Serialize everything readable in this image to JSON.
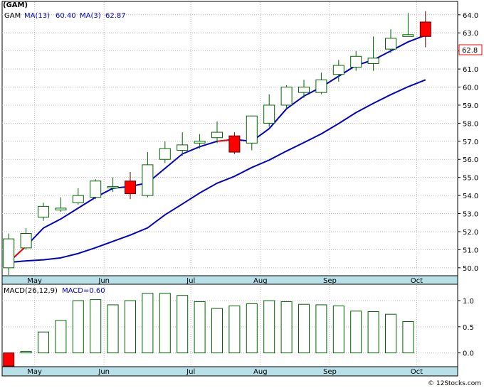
{
  "chart_data": [
    {
      "type": "candlestick",
      "symbol": "(GAM)",
      "legend": [
        {
          "label": "MA(13)",
          "value": "60.40",
          "color": "#0000cc"
        },
        {
          "label": "MA(3)",
          "value": "62.87",
          "color": "#0000cc"
        }
      ],
      "last_price_label": "62.8",
      "ylim": [
        49.6,
        64.7
      ],
      "y_ticks": [
        "50.0",
        "51.0",
        "52.0",
        "53.0",
        "54.0",
        "55.0",
        "56.0",
        "57.0",
        "58.0",
        "59.0",
        "60.0",
        "61.0",
        "62.0",
        "63.0",
        "64.0"
      ],
      "x_labels": [
        {
          "label": "May",
          "index": 1
        },
        {
          "label": "Jun",
          "index": 5
        },
        {
          "label": "Jul",
          "index": 10
        },
        {
          "label": "Aug",
          "index": 14
        },
        {
          "label": "Sep",
          "index": 18
        },
        {
          "label": "Oct",
          "index": 23
        }
      ],
      "candles": [
        {
          "o": 50.0,
          "h": 51.9,
          "l": 49.6,
          "c": 51.6
        },
        {
          "o": 51.1,
          "h": 52.2,
          "l": 51.0,
          "c": 51.9
        },
        {
          "o": 52.8,
          "h": 53.6,
          "l": 52.6,
          "c": 53.4
        },
        {
          "o": 53.2,
          "h": 53.9,
          "l": 53.1,
          "c": 53.3
        },
        {
          "o": 53.6,
          "h": 54.4,
          "l": 53.5,
          "c": 54.0
        },
        {
          "o": 53.9,
          "h": 54.9,
          "l": 53.8,
          "c": 54.8
        },
        {
          "o": 54.5,
          "h": 55.0,
          "l": 54.2,
          "c": 54.5
        },
        {
          "o": 54.8,
          "h": 55.3,
          "l": 53.8,
          "c": 54.1
        },
        {
          "o": 54.0,
          "h": 56.4,
          "l": 53.9,
          "c": 55.7
        },
        {
          "o": 56.0,
          "h": 57.0,
          "l": 55.8,
          "c": 56.6
        },
        {
          "o": 56.5,
          "h": 57.5,
          "l": 56.2,
          "c": 56.8
        },
        {
          "o": 56.9,
          "h": 57.4,
          "l": 56.6,
          "c": 57.0
        },
        {
          "o": 57.2,
          "h": 58.1,
          "l": 56.9,
          "c": 57.5
        },
        {
          "o": 57.3,
          "h": 57.5,
          "l": 56.3,
          "c": 56.4
        },
        {
          "o": 56.9,
          "h": 58.4,
          "l": 56.5,
          "c": 58.4
        },
        {
          "o": 58.0,
          "h": 59.6,
          "l": 57.8,
          "c": 59.0
        },
        {
          "o": 59.0,
          "h": 60.1,
          "l": 58.8,
          "c": 60.0
        },
        {
          "o": 59.7,
          "h": 60.4,
          "l": 59.4,
          "c": 60.0
        },
        {
          "o": 59.7,
          "h": 60.8,
          "l": 59.6,
          "c": 60.4
        },
        {
          "o": 60.7,
          "h": 61.5,
          "l": 60.3,
          "c": 61.2
        },
        {
          "o": 61.1,
          "h": 62.0,
          "l": 60.9,
          "c": 61.7
        },
        {
          "o": 61.3,
          "h": 62.8,
          "l": 60.9,
          "c": 61.6
        },
        {
          "o": 62.1,
          "h": 63.2,
          "l": 61.9,
          "c": 62.7
        },
        {
          "o": 62.8,
          "h": 64.1,
          "l": 62.8,
          "c": 62.9
        },
        {
          "o": 63.6,
          "h": 64.2,
          "l": 62.2,
          "c": 62.8
        }
      ],
      "ma_short": [
        50.3,
        51.2,
        52.2,
        52.7,
        53.3,
        53.9,
        54.4,
        54.5,
        54.7,
        55.5,
        56.3,
        56.7,
        57.0,
        57.1,
        57.0,
        57.7,
        58.8,
        59.5,
        60.0,
        60.6,
        61.2,
        61.5,
        62.0,
        62.5,
        62.87
      ],
      "ma_long": [
        50.3,
        50.38,
        50.44,
        50.55,
        50.79,
        51.11,
        51.46,
        51.81,
        52.21,
        52.93,
        53.53,
        54.14,
        54.68,
        55.06,
        55.55,
        55.96,
        56.46,
        56.93,
        57.41,
        57.98,
        58.59,
        59.1,
        59.58,
        60.02,
        60.4
      ],
      "ma_short_red_segments": [
        [
          0,
          1
        ],
        [
          12,
          13
        ]
      ]
    },
    {
      "type": "bar",
      "legend": [
        {
          "label": "MACD(26,12,9)",
          "color": "#000000"
        },
        {
          "label": "MACD=0.60",
          "color": "#0000cc"
        }
      ],
      "ylim": [
        -0.25,
        1.3
      ],
      "y_ticks": [
        "0.0",
        "0.5",
        "1.0"
      ],
      "values": [
        -0.25,
        0.03,
        0.4,
        0.62,
        1.0,
        1.02,
        0.92,
        1.0,
        1.14,
        1.14,
        1.1,
        0.98,
        0.85,
        0.9,
        0.94,
        1.0,
        0.98,
        0.93,
        0.92,
        0.9,
        0.8,
        0.79,
        0.74,
        0.6
      ],
      "negative_color": "#ff0000"
    }
  ],
  "footer": {
    "copyright": "© 12Stocks.com"
  }
}
